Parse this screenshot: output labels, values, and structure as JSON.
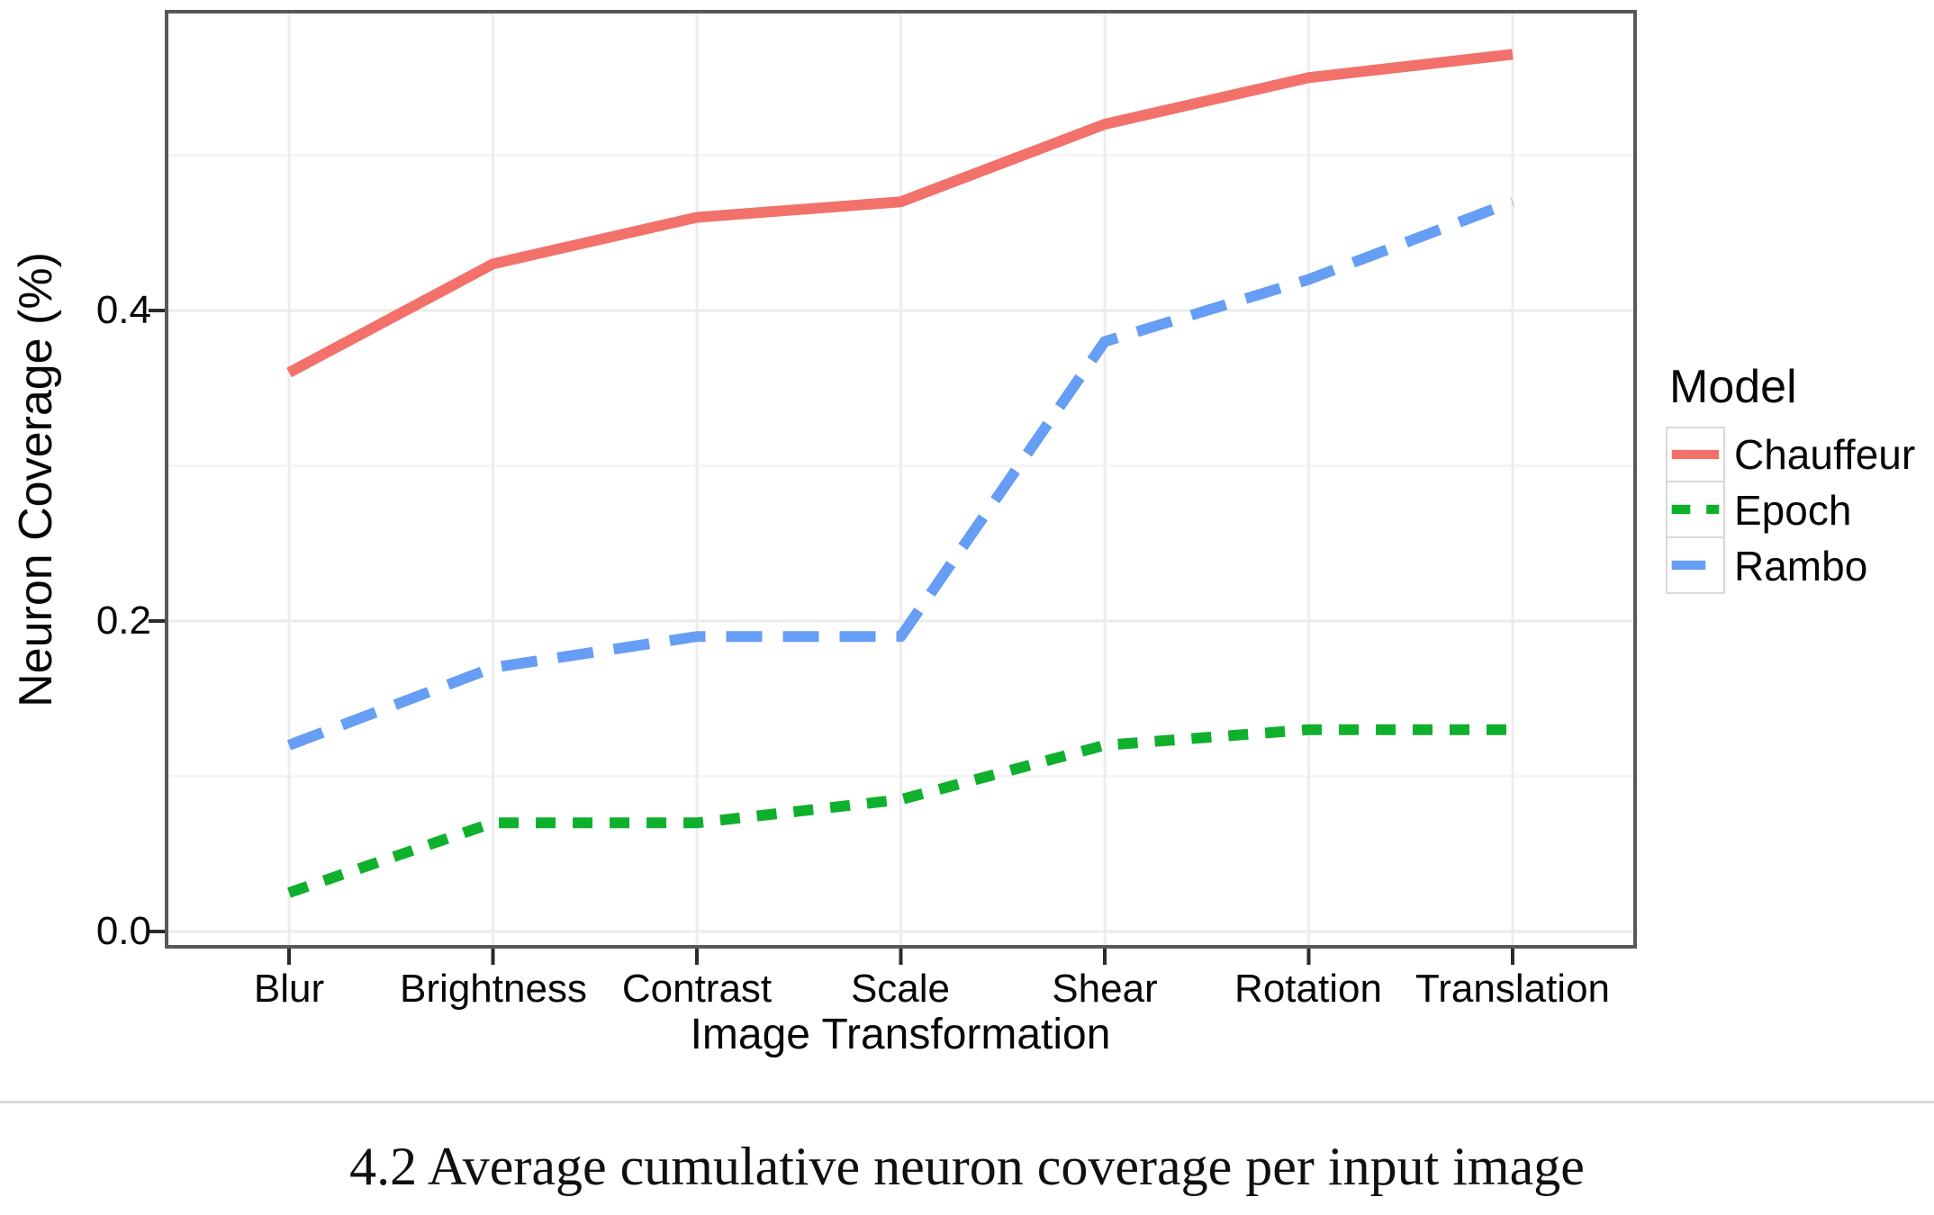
{
  "figure": {
    "caption": "4.2 Average cumulative neuron coverage per input image"
  },
  "chart_data": {
    "type": "line",
    "title": "",
    "xlabel": "Image Transformation",
    "ylabel": "Neuron Coverage (%)",
    "categories": [
      "Blur",
      "Brightness",
      "Contrast",
      "Scale",
      "Shear",
      "Rotation",
      "Translation"
    ],
    "series": [
      {
        "name": "Chauffeur",
        "color": "#f2716b",
        "line_style": "solid",
        "values": [
          0.36,
          0.43,
          0.46,
          0.47,
          0.52,
          0.55,
          0.565
        ]
      },
      {
        "name": "Epoch",
        "color": "#0fb02c",
        "line_style": "dashed-short",
        "values": [
          0.025,
          0.07,
          0.07,
          0.085,
          0.12,
          0.13,
          0.13
        ]
      },
      {
        "name": "Rambo",
        "color": "#669df5",
        "line_style": "dashed-long",
        "values": [
          0.12,
          0.17,
          0.19,
          0.19,
          0.38,
          0.42,
          0.47
        ]
      }
    ],
    "y_ticks": [
      "0.0",
      "0.2",
      "0.4"
    ],
    "y_tick_values": [
      0.0,
      0.2,
      0.4
    ],
    "y_minor_values": [
      0.1,
      0.3,
      0.5
    ],
    "ylim": [
      -0.01,
      0.593
    ],
    "grid": true,
    "legend_title": "Model",
    "legend_position": "right"
  }
}
